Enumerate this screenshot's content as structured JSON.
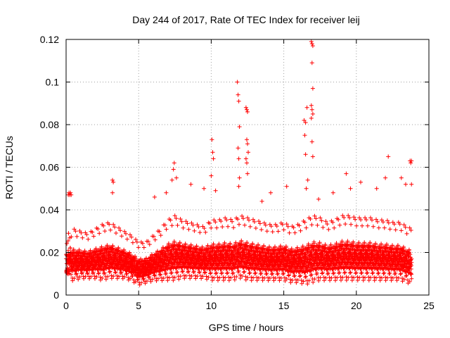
{
  "chart_data": {
    "type": "scatter",
    "title": "Day 244 of 2017, Rate Of TEC Index for receiver leij",
    "xlabel": "GPS time / hours",
    "ylabel": "ROTI / TECUs",
    "xlim": [
      0,
      25
    ],
    "ylim": [
      0,
      0.12
    ],
    "xticks": [
      0,
      5,
      10,
      15,
      20,
      25
    ],
    "yticks": [
      0,
      0.02,
      0.04,
      0.06,
      0.08,
      0.1,
      0.12
    ],
    "xtick_labels": [
      "0",
      "5",
      "10",
      "15",
      "20",
      "25"
    ],
    "ytick_labels": [
      "0",
      "0.02",
      "0.04",
      "0.06",
      "0.08",
      "0.1",
      "0.12"
    ],
    "grid": true,
    "marker": "+",
    "series_color": "#ff0000",
    "series": [
      {
        "name": "ROTI",
        "band_x": [
          0,
          0.5,
          1,
          1.5,
          2,
          2.5,
          3,
          3.5,
          4,
          4.5,
          5,
          5.5,
          6,
          6.5,
          7,
          7.5,
          8,
          8.5,
          9,
          9.5,
          10,
          10.5,
          11,
          11.5,
          12,
          12.5,
          13,
          13.5,
          14,
          14.5,
          15,
          15.5,
          16,
          16.5,
          17,
          17.5,
          18,
          18.5,
          19,
          19.5,
          20,
          20.5,
          21,
          21.5,
          22,
          22.5,
          23,
          23.5,
          23.8
        ],
        "band_low": [
          0.006,
          0.006,
          0.007,
          0.007,
          0.007,
          0.006,
          0.007,
          0.007,
          0.007,
          0.006,
          0.004,
          0.005,
          0.006,
          0.006,
          0.006,
          0.006,
          0.007,
          0.007,
          0.007,
          0.007,
          0.006,
          0.006,
          0.006,
          0.006,
          0.007,
          0.006,
          0.006,
          0.006,
          0.006,
          0.006,
          0.006,
          0.005,
          0.005,
          0.004,
          0.005,
          0.006,
          0.006,
          0.006,
          0.006,
          0.006,
          0.006,
          0.006,
          0.006,
          0.006,
          0.006,
          0.006,
          0.006,
          0.005,
          0.004
        ],
        "band_high": [
          0.028,
          0.03,
          0.029,
          0.028,
          0.03,
          0.032,
          0.033,
          0.031,
          0.029,
          0.027,
          0.024,
          0.024,
          0.027,
          0.03,
          0.034,
          0.036,
          0.034,
          0.033,
          0.032,
          0.031,
          0.034,
          0.034,
          0.035,
          0.034,
          0.036,
          0.035,
          0.034,
          0.033,
          0.032,
          0.032,
          0.033,
          0.031,
          0.032,
          0.034,
          0.036,
          0.035,
          0.033,
          0.034,
          0.036,
          0.036,
          0.035,
          0.035,
          0.035,
          0.034,
          0.034,
          0.033,
          0.033,
          0.031,
          0.03
        ],
        "outliers": [
          [
            0.15,
            0.047
          ],
          [
            0.2,
            0.048
          ],
          [
            0.25,
            0.047
          ],
          [
            0.3,
            0.048
          ],
          [
            0.35,
            0.047
          ],
          [
            3.2,
            0.054
          ],
          [
            3.25,
            0.053
          ],
          [
            3.2,
            0.048
          ],
          [
            6.1,
            0.046
          ],
          [
            6.9,
            0.048
          ],
          [
            7.3,
            0.054
          ],
          [
            7.4,
            0.059
          ],
          [
            7.45,
            0.062
          ],
          [
            7.6,
            0.055
          ],
          [
            8.6,
            0.052
          ],
          [
            9.5,
            0.05
          ],
          [
            10.05,
            0.073
          ],
          [
            10.1,
            0.067
          ],
          [
            10.15,
            0.064
          ],
          [
            10.0,
            0.056
          ],
          [
            10.3,
            0.049
          ],
          [
            11.8,
            0.1
          ],
          [
            11.85,
            0.094
          ],
          [
            11.9,
            0.091
          ],
          [
            11.95,
            0.079
          ],
          [
            11.85,
            0.069
          ],
          [
            11.9,
            0.064
          ],
          [
            11.95,
            0.055
          ],
          [
            11.9,
            0.051
          ],
          [
            12.4,
            0.088
          ],
          [
            12.45,
            0.087
          ],
          [
            12.5,
            0.086
          ],
          [
            12.45,
            0.073
          ],
          [
            12.5,
            0.071
          ],
          [
            12.55,
            0.067
          ],
          [
            12.4,
            0.064
          ],
          [
            12.45,
            0.062
          ],
          [
            12.5,
            0.057
          ],
          [
            13.5,
            0.044
          ],
          [
            14.1,
            0.048
          ],
          [
            15.2,
            0.051
          ],
          [
            16.4,
            0.082
          ],
          [
            16.5,
            0.081
          ],
          [
            16.45,
            0.075
          ],
          [
            16.5,
            0.066
          ],
          [
            16.6,
            0.088
          ],
          [
            16.65,
            0.054
          ],
          [
            16.55,
            0.05
          ],
          [
            16.9,
            0.119
          ],
          [
            16.95,
            0.118
          ],
          [
            17.0,
            0.117
          ],
          [
            16.95,
            0.109
          ],
          [
            17.0,
            0.097
          ],
          [
            16.9,
            0.089
          ],
          [
            16.95,
            0.087
          ],
          [
            17.0,
            0.085
          ],
          [
            16.9,
            0.083
          ],
          [
            16.95,
            0.072
          ],
          [
            17.0,
            0.065
          ],
          [
            17.4,
            0.045
          ],
          [
            18.4,
            0.048
          ],
          [
            19.3,
            0.057
          ],
          [
            19.6,
            0.05
          ],
          [
            20.3,
            0.053
          ],
          [
            21.4,
            0.05
          ],
          [
            22.0,
            0.055
          ],
          [
            22.2,
            0.065
          ],
          [
            23.1,
            0.055
          ],
          [
            23.4,
            0.052
          ],
          [
            23.7,
            0.063
          ],
          [
            23.75,
            0.062
          ],
          [
            23.8,
            0.063
          ],
          [
            23.8,
            0.052
          ]
        ]
      }
    ]
  }
}
